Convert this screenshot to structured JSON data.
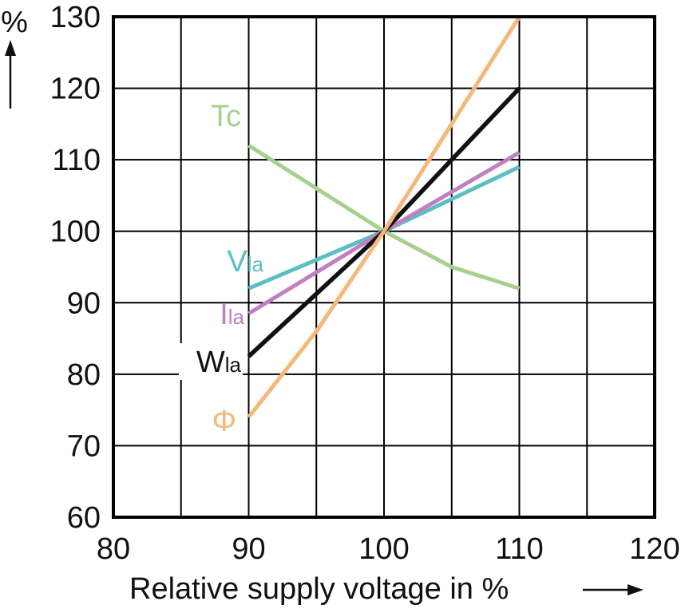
{
  "chart_data": {
    "type": "line",
    "xlabel": "Relative supply voltage in %",
    "ylabel": "%",
    "xlim": [
      80,
      120
    ],
    "ylim": [
      60,
      130
    ],
    "x_ticks": [
      80,
      90,
      100,
      110,
      120
    ],
    "y_ticks": [
      60,
      70,
      80,
      90,
      100,
      110,
      120,
      130
    ],
    "grid": true,
    "series": [
      {
        "name": "Tc",
        "label_main": "Tc",
        "label_sub": "",
        "color": "#a8d08d",
        "x": [
          90,
          95,
          100,
          105,
          110
        ],
        "y": [
          112,
          106,
          100,
          95,
          92
        ]
      },
      {
        "name": "Vla",
        "label_main": "V",
        "label_sub": "la",
        "color": "#5bbfc0",
        "x": [
          90,
          100,
          110
        ],
        "y": [
          92,
          100,
          109
        ]
      },
      {
        "name": "Ila",
        "label_main": "I",
        "label_sub": "la",
        "color": "#c17fc0",
        "x": [
          90,
          100,
          110
        ],
        "y": [
          88.5,
          100,
          111
        ]
      },
      {
        "name": "Wla",
        "label_main": "W",
        "label_sub": "la",
        "color": "#111111",
        "x": [
          90,
          100,
          110
        ],
        "y": [
          82.5,
          100,
          120
        ]
      },
      {
        "name": "Φ",
        "label_main": "Φ",
        "label_sub": "",
        "color": "#f5b87a",
        "x": [
          90,
          95,
          100,
          105,
          110
        ],
        "y": [
          74,
          86,
          100,
          115,
          130
        ]
      }
    ]
  }
}
